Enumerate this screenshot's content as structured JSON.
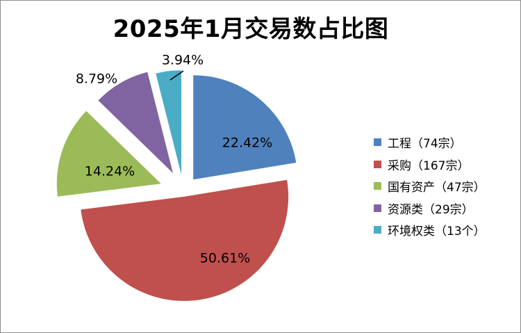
{
  "chart_data": {
    "type": "pie",
    "title": "2025年1月交易数占比图",
    "categories": [
      "工程（74宗）",
      "采购（167宗）",
      "国有资产（47宗）",
      "资源类（29宗）",
      "环境权类（13个）"
    ],
    "values": [
      22.42,
      50.61,
      14.24,
      8.79,
      3.94
    ],
    "data_labels": [
      "22.42%",
      "50.61%",
      "14.24%",
      "8.79%",
      "3.94%"
    ],
    "colors": [
      "#4f81bd",
      "#c0504d",
      "#9bbb59",
      "#8064a2",
      "#4bacc6"
    ],
    "legend_placement": "right",
    "exploded": true
  }
}
